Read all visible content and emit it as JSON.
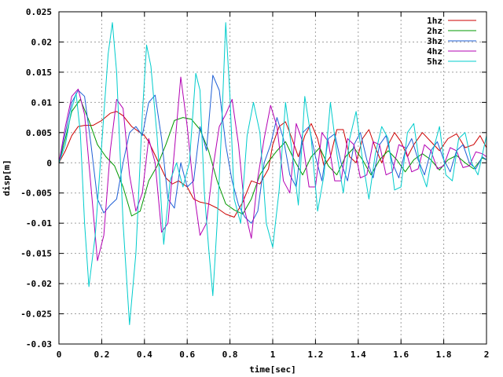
{
  "chart_data": {
    "type": "line",
    "title": "",
    "xlabel": "time[sec]",
    "ylabel": "disp[m]",
    "xlim": [
      0,
      2
    ],
    "ylim": [
      -0.03,
      0.025
    ],
    "grid": true,
    "legend_position": "top-right",
    "x_ticks": [
      "0",
      "0.2",
      "0.4",
      "0.6",
      "0.8",
      "1",
      "1.2",
      "1.4",
      "1.6",
      "1.8",
      "2"
    ],
    "x_tick_values": [
      0,
      0.2,
      0.4,
      0.6,
      0.8,
      1.0,
      1.2,
      1.4,
      1.6,
      1.8,
      2.0
    ],
    "y_ticks": [
      "0.025",
      "0.02",
      "0.015",
      "0.01",
      "0.005",
      "0",
      "-0.005",
      "-0.01",
      "-0.015",
      "-0.02",
      "-0.025",
      "-0.03"
    ],
    "y_tick_values": [
      0.025,
      0.02,
      0.015,
      0.01,
      0.005,
      0,
      -0.005,
      -0.01,
      -0.015,
      -0.02,
      -0.025,
      -0.03
    ],
    "series": [
      {
        "name": "1hz",
        "color": "#cc0000",
        "x": [
          0,
          0.03,
          0.06,
          0.09,
          0.12,
          0.16,
          0.2,
          0.24,
          0.27,
          0.3,
          0.34,
          0.38,
          0.4,
          0.42,
          0.46,
          0.5,
          0.53,
          0.56,
          0.6,
          0.63,
          0.66,
          0.7,
          0.74,
          0.78,
          0.82,
          0.86,
          0.9,
          0.94,
          0.98,
          1.0,
          1.03,
          1.06,
          1.09,
          1.12,
          1.15,
          1.18,
          1.21,
          1.24,
          1.27,
          1.3,
          1.33,
          1.36,
          1.39,
          1.42,
          1.45,
          1.48,
          1.51,
          1.54,
          1.57,
          1.6,
          1.63,
          1.66,
          1.7,
          1.74,
          1.78,
          1.82,
          1.86,
          1.9,
          1.94,
          1.97,
          2.0
        ],
        "values": [
          0,
          0.002,
          0.0045,
          0.006,
          0.0062,
          0.0062,
          0.007,
          0.0082,
          0.0085,
          0.0078,
          0.006,
          0.005,
          0.0045,
          0.0035,
          0.0005,
          -0.0025,
          -0.0035,
          -0.003,
          -0.004,
          -0.006,
          -0.0065,
          -0.0068,
          -0.0075,
          -0.0085,
          -0.009,
          -0.0065,
          -0.003,
          -0.0035,
          -0.001,
          0.003,
          0.006,
          0.0068,
          0.004,
          0.001,
          0.0045,
          0.0065,
          0.004,
          -0.0005,
          0.001,
          0.0055,
          0.0055,
          0.001,
          0.0,
          0.004,
          0.0055,
          0.0025,
          0.0,
          0.003,
          0.005,
          0.0035,
          0.001,
          0.003,
          0.005,
          0.0035,
          0.002,
          0.004,
          0.0048,
          0.0025,
          0.003,
          0.0045,
          0.0025
        ]
      },
      {
        "name": "2hz",
        "color": "#009900",
        "x": [
          0,
          0.03,
          0.06,
          0.1,
          0.14,
          0.18,
          0.22,
          0.26,
          0.3,
          0.34,
          0.38,
          0.42,
          0.46,
          0.5,
          0.54,
          0.58,
          0.62,
          0.66,
          0.7,
          0.74,
          0.78,
          0.82,
          0.86,
          0.9,
          0.94,
          0.98,
          1.02,
          1.06,
          1.1,
          1.14,
          1.18,
          1.22,
          1.26,
          1.3,
          1.34,
          1.38,
          1.42,
          1.46,
          1.5,
          1.54,
          1.58,
          1.62,
          1.66,
          1.7,
          1.74,
          1.78,
          1.82,
          1.86,
          1.9,
          1.94,
          1.98,
          2.0
        ],
        "values": [
          0,
          0.004,
          0.0085,
          0.0105,
          0.007,
          0.003,
          0.001,
          -0.0005,
          -0.004,
          -0.0088,
          -0.008,
          -0.003,
          -0.0005,
          0.003,
          0.007,
          0.0075,
          0.0072,
          0.0055,
          0.002,
          -0.003,
          -0.0068,
          -0.0078,
          -0.0085,
          -0.006,
          -0.002,
          0.0002,
          0.002,
          0.0035,
          0.0005,
          -0.002,
          0.001,
          0.0025,
          -0.0005,
          -0.002,
          0.001,
          0.0025,
          0.0005,
          -0.002,
          0.0005,
          0.002,
          0.0005,
          -0.0015,
          0.0005,
          0.0015,
          0.0005,
          -0.0012,
          0.0005,
          0.0012,
          0.0,
          -0.001,
          0.0008,
          0.0005
        ]
      },
      {
        "name": "3hz",
        "color": "#1f5fd6",
        "x": [
          0,
          0.03,
          0.06,
          0.09,
          0.12,
          0.15,
          0.18,
          0.21,
          0.24,
          0.27,
          0.3,
          0.33,
          0.36,
          0.39,
          0.42,
          0.45,
          0.48,
          0.51,
          0.54,
          0.57,
          0.6,
          0.63,
          0.66,
          0.69,
          0.72,
          0.75,
          0.78,
          0.81,
          0.84,
          0.87,
          0.9,
          0.93,
          0.96,
          0.99,
          1.02,
          1.05,
          1.08,
          1.11,
          1.14,
          1.17,
          1.2,
          1.23,
          1.26,
          1.29,
          1.32,
          1.35,
          1.38,
          1.41,
          1.44,
          1.47,
          1.5,
          1.53,
          1.56,
          1.59,
          1.62,
          1.65,
          1.68,
          1.71,
          1.74,
          1.77,
          1.8,
          1.83,
          1.86,
          1.89,
          1.92,
          1.95,
          1.98,
          2.0
        ],
        "values": [
          0,
          0.005,
          0.01,
          0.012,
          0.011,
          0.003,
          -0.006,
          -0.0083,
          -0.007,
          -0.006,
          0.0,
          0.005,
          0.006,
          0.0045,
          0.01,
          0.0112,
          0.004,
          -0.006,
          -0.0075,
          0.0,
          -0.004,
          -0.003,
          0.006,
          0.002,
          0.0145,
          0.012,
          0.003,
          -0.003,
          -0.007,
          -0.009,
          -0.01,
          -0.008,
          0.0,
          0.003,
          0.0075,
          0.004,
          -0.002,
          -0.004,
          0.005,
          0.006,
          0.001,
          -0.003,
          0.004,
          0.0048,
          0.0,
          -0.003,
          0.003,
          0.005,
          0.0005,
          -0.0025,
          0.003,
          0.0045,
          0.0,
          -0.0025,
          0.002,
          0.004,
          0.0005,
          -0.002,
          0.002,
          0.0035,
          0.0005,
          -0.0015,
          0.002,
          0.003,
          0.0,
          -0.001,
          0.001,
          0.0005
        ]
      },
      {
        "name": "4hz",
        "color": "#b300b3",
        "x": [
          0,
          0.03,
          0.06,
          0.09,
          0.12,
          0.15,
          0.18,
          0.21,
          0.24,
          0.27,
          0.3,
          0.33,
          0.36,
          0.39,
          0.42,
          0.45,
          0.48,
          0.51,
          0.54,
          0.57,
          0.6,
          0.63,
          0.66,
          0.69,
          0.72,
          0.75,
          0.78,
          0.81,
          0.84,
          0.87,
          0.9,
          0.93,
          0.96,
          0.99,
          1.02,
          1.05,
          1.08,
          1.11,
          1.14,
          1.17,
          1.2,
          1.23,
          1.26,
          1.29,
          1.32,
          1.35,
          1.38,
          1.41,
          1.44,
          1.47,
          1.5,
          1.53,
          1.56,
          1.59,
          1.62,
          1.65,
          1.68,
          1.71,
          1.74,
          1.77,
          1.8,
          1.83,
          1.86,
          1.89,
          1.92,
          1.95,
          1.98,
          2.0
        ],
        "values": [
          0,
          0.006,
          0.011,
          0.0122,
          0.008,
          -0.004,
          -0.0162,
          -0.012,
          0.002,
          0.0105,
          0.009,
          -0.002,
          -0.008,
          -0.005,
          0.004,
          0.0,
          -0.0115,
          -0.01,
          0.002,
          0.0142,
          0.006,
          -0.0045,
          -0.012,
          -0.01,
          -0.001,
          0.006,
          0.008,
          0.0105,
          0.003,
          -0.008,
          -0.0125,
          -0.0025,
          0.004,
          0.0095,
          0.006,
          -0.003,
          -0.005,
          0.0065,
          0.0035,
          -0.004,
          -0.004,
          0.005,
          0.0035,
          -0.003,
          -0.003,
          0.004,
          0.003,
          -0.0025,
          -0.002,
          0.0035,
          0.003,
          -0.002,
          -0.0015,
          0.003,
          0.0025,
          -0.0015,
          -0.001,
          0.003,
          0.002,
          -0.001,
          -0.0005,
          0.0025,
          0.002,
          -0.0008,
          -0.0005,
          0.0018,
          0.0015,
          0.001
        ]
      },
      {
        "name": "5hz",
        "color": "#00cccc",
        "x": [
          0,
          0.03,
          0.06,
          0.08,
          0.1,
          0.12,
          0.14,
          0.17,
          0.2,
          0.23,
          0.25,
          0.27,
          0.3,
          0.33,
          0.36,
          0.39,
          0.41,
          0.43,
          0.46,
          0.49,
          0.52,
          0.55,
          0.58,
          0.61,
          0.64,
          0.66,
          0.68,
          0.7,
          0.72,
          0.74,
          0.76,
          0.78,
          0.8,
          0.82,
          0.85,
          0.88,
          0.91,
          0.94,
          0.97,
          1.0,
          1.03,
          1.06,
          1.09,
          1.12,
          1.15,
          1.18,
          1.21,
          1.24,
          1.27,
          1.3,
          1.33,
          1.36,
          1.39,
          1.42,
          1.45,
          1.48,
          1.51,
          1.54,
          1.57,
          1.6,
          1.63,
          1.66,
          1.69,
          1.72,
          1.75,
          1.78,
          1.81,
          1.84,
          1.87,
          1.9,
          1.93,
          1.96,
          2.0
        ],
        "values": [
          0,
          0.003,
          0.009,
          0.0115,
          0.005,
          -0.01,
          -0.0205,
          -0.012,
          0.003,
          0.018,
          0.0232,
          0.015,
          -0.01,
          -0.0268,
          -0.015,
          0.008,
          0.0195,
          0.016,
          0.004,
          -0.0135,
          -0.003,
          0.0,
          -0.004,
          0.0,
          0.0148,
          0.012,
          -0.005,
          -0.014,
          -0.022,
          -0.01,
          0.005,
          0.0232,
          0.011,
          -0.006,
          -0.01,
          0.0045,
          0.01,
          0.005,
          -0.01,
          -0.014,
          -0.0045,
          0.01,
          0.002,
          -0.007,
          0.011,
          0.004,
          -0.008,
          -0.002,
          0.01,
          0.0015,
          -0.005,
          0.004,
          0.0085,
          0.0005,
          -0.006,
          0.0015,
          0.006,
          0.004,
          -0.0045,
          -0.004,
          0.005,
          0.0065,
          -0.001,
          -0.004,
          0.002,
          0.006,
          -0.002,
          -0.003,
          0.004,
          0.005,
          0.0,
          -0.002,
          0.0045
        ]
      }
    ]
  }
}
